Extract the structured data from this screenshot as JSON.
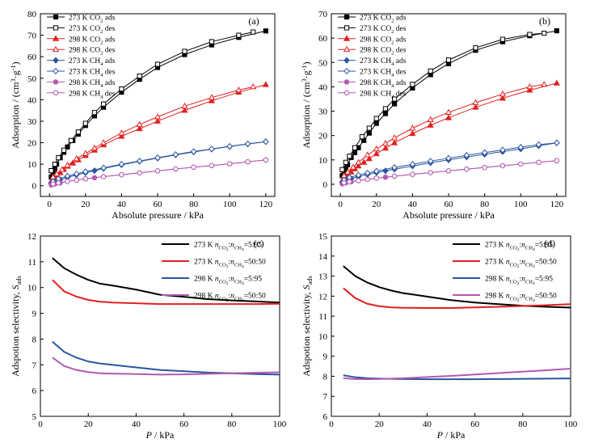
{
  "chart_data": [
    {
      "type": "scatter",
      "panel_label": "(a)",
      "xlabel": "Absolute pressure / kPa",
      "ylabel": "Adsorption / (cm³·g⁻¹)",
      "xlim": [
        -5,
        125
      ],
      "ylim": [
        -5,
        80
      ],
      "xticks": [
        0,
        20,
        40,
        60,
        80,
        100,
        120
      ],
      "yticks": [
        0,
        10,
        20,
        30,
        40,
        50,
        60,
        70,
        80
      ],
      "legend_position": "top-left",
      "series": [
        {
          "name": "273 K CO₂ ads",
          "color": "#000000",
          "marker": "square",
          "filled": true,
          "x": [
            1,
            2,
            3,
            4,
            6,
            8,
            10,
            13,
            16,
            20,
            25,
            30,
            40,
            50,
            60,
            75,
            90,
            105,
            120
          ],
          "y": [
            4,
            6,
            8,
            10,
            13,
            15.5,
            18,
            21,
            24,
            28,
            32.5,
            36.5,
            43.5,
            49.5,
            55,
            61,
            65.5,
            69,
            72
          ]
        },
        {
          "name": "273 K CO₂ des",
          "color": "#000000",
          "marker": "square",
          "filled": false,
          "x": [
            1,
            3,
            5,
            8,
            12,
            16,
            20,
            25,
            30,
            40,
            50,
            60,
            75,
            90,
            105,
            113
          ],
          "y": [
            7,
            10,
            13,
            16.5,
            21,
            25,
            29,
            34,
            38,
            45,
            51,
            56.5,
            62.5,
            67,
            70,
            71.5
          ]
        },
        {
          "name": "298 K CO₂ ads",
          "color": "#e02020",
          "marker": "triangle",
          "filled": true,
          "x": [
            1,
            2,
            4,
            6,
            8,
            10,
            13,
            16,
            20,
            25,
            30,
            40,
            50,
            60,
            75,
            90,
            105,
            120
          ],
          "y": [
            2,
            3,
            4.5,
            6,
            7.5,
            9,
            10.5,
            12,
            14,
            16.5,
            19,
            23,
            26.5,
            30,
            35,
            39.5,
            43.5,
            47
          ]
        },
        {
          "name": "298 K CO₂ des",
          "color": "#e02020",
          "marker": "triangle",
          "filled": false,
          "x": [
            2,
            4,
            7,
            10,
            15,
            20,
            25,
            30,
            40,
            50,
            60,
            75,
            90,
            105,
            113
          ],
          "y": [
            4,
            5.5,
            7.5,
            9.5,
            12.5,
            15,
            17.5,
            20,
            24.5,
            28.5,
            32,
            37,
            41,
            44.5,
            46
          ]
        },
        {
          "name": "273 K CH₄ ads",
          "color": "#2a55a0",
          "marker": "diamond",
          "filled": true,
          "x": [
            1,
            3,
            6,
            10,
            15,
            20,
            25,
            30,
            40,
            50,
            60,
            70,
            80,
            90,
            100,
            110,
            120
          ],
          "y": [
            1,
            1.8,
            2.8,
            3.8,
            5,
            6,
            7,
            8,
            9.7,
            11.3,
            12.8,
            14.3,
            15.7,
            17,
            18.2,
            19.4,
            20.5
          ]
        },
        {
          "name": "273 K CH₄ des",
          "color": "#2a55a0",
          "marker": "diamond",
          "filled": false,
          "x": [
            2,
            5,
            10,
            15,
            20,
            30,
            40,
            50,
            60,
            70,
            80,
            90,
            100,
            110,
            120
          ],
          "y": [
            2,
            3.2,
            4.5,
            5.5,
            6.5,
            8.3,
            10,
            11.5,
            13,
            14.5,
            15.9,
            17.1,
            18.3,
            19.5,
            20.5
          ]
        },
        {
          "name": "298 K CH₄ ads",
          "color": "#b15aae",
          "marker": "circle",
          "filled": true,
          "x": [
            1,
            3,
            6,
            10,
            15,
            20,
            25,
            30,
            40,
            50,
            60,
            70,
            80,
            90,
            100,
            110,
            120
          ],
          "y": [
            0.3,
            0.8,
            1.3,
            2,
            2.6,
            3.2,
            3.7,
            4.2,
            5.1,
            6,
            6.9,
            7.8,
            8.6,
            9.4,
            10.2,
            11.1,
            12
          ]
        },
        {
          "name": "298 K CH₄ des",
          "color": "#b15aae",
          "marker": "circle",
          "filled": false,
          "x": [
            2,
            5,
            10,
            15,
            20,
            30,
            40,
            50,
            60,
            70,
            80,
            90,
            100,
            110,
            120
          ],
          "y": [
            0.8,
            1.3,
            2,
            2.6,
            3.2,
            4.2,
            5.1,
            6,
            6.9,
            7.8,
            8.6,
            9.4,
            10.2,
            11.1,
            12
          ]
        }
      ]
    },
    {
      "type": "scatter",
      "panel_label": "(b)",
      "xlabel": "Absolute pressure / kPa",
      "ylabel": "Adsorption / (cm³·g⁻¹)",
      "xlim": [
        -5,
        125
      ],
      "ylim": [
        -5,
        70
      ],
      "xticks": [
        0,
        20,
        40,
        60,
        80,
        100,
        120
      ],
      "yticks": [
        0,
        10,
        20,
        30,
        40,
        50,
        60,
        70
      ],
      "legend_position": "top-left",
      "series": [
        {
          "name": "273 K CO₂ ads",
          "color": "#000000",
          "marker": "square",
          "filled": true,
          "x": [
            1,
            2,
            3,
            4,
            6,
            8,
            10,
            13,
            16,
            20,
            25,
            30,
            40,
            50,
            60,
            75,
            90,
            105,
            120
          ],
          "y": [
            3.5,
            5,
            6.5,
            8,
            11,
            13,
            15,
            18,
            21,
            25,
            29,
            33,
            39.5,
            45,
            49.5,
            55,
            58.5,
            61,
            63
          ]
        },
        {
          "name": "273 K CO₂ des",
          "color": "#000000",
          "marker": "square",
          "filled": false,
          "x": [
            1,
            3,
            5,
            8,
            12,
            16,
            20,
            25,
            30,
            40,
            50,
            60,
            75,
            90,
            105,
            113
          ],
          "y": [
            6,
            9,
            11.5,
            15,
            19.5,
            23,
            27,
            31,
            35,
            41,
            46.5,
            51,
            56,
            59.5,
            61.5,
            62
          ]
        },
        {
          "name": "298 K CO₂ ads",
          "color": "#e02020",
          "marker": "triangle",
          "filled": true,
          "x": [
            1,
            2,
            4,
            6,
            8,
            10,
            13,
            16,
            20,
            25,
            30,
            40,
            50,
            60,
            75,
            90,
            105,
            120
          ],
          "y": [
            1.5,
            2.5,
            3.8,
            5,
            6.3,
            7.5,
            9,
            10.5,
            12.5,
            14.8,
            17,
            20.8,
            24.2,
            27.3,
            31.6,
            35.3,
            38.6,
            41.5
          ]
        },
        {
          "name": "298 K CO₂ des",
          "color": "#e02020",
          "marker": "triangle",
          "filled": false,
          "x": [
            2,
            4,
            7,
            10,
            15,
            20,
            25,
            30,
            40,
            50,
            60,
            75,
            90,
            105,
            113
          ],
          "y": [
            3.5,
            5,
            7,
            9,
            12,
            14.5,
            16.8,
            19,
            23,
            26.5,
            29.5,
            33.5,
            37,
            40,
            41
          ]
        },
        {
          "name": "273 K CH₄ ads",
          "color": "#2a55a0",
          "marker": "diamond",
          "filled": true,
          "x": [
            1,
            3,
            6,
            10,
            15,
            20,
            25,
            30,
            40,
            50,
            60,
            70,
            80,
            90,
            100,
            110,
            120
          ],
          "y": [
            0.8,
            1.5,
            2.3,
            3.1,
            4,
            4.8,
            5.5,
            6.2,
            7.5,
            8.8,
            10,
            11.2,
            12.3,
            13.4,
            14.5,
            15.8,
            17
          ]
        },
        {
          "name": "273 K CH₄ des",
          "color": "#2a55a0",
          "marker": "diamond",
          "filled": false,
          "x": [
            2,
            5,
            10,
            15,
            20,
            30,
            40,
            50,
            60,
            70,
            80,
            90,
            100,
            110,
            120
          ],
          "y": [
            1.8,
            2.8,
            3.8,
            4.6,
            5.4,
            6.9,
            8.2,
            9.5,
            10.7,
            11.9,
            13,
            14.1,
            15.2,
            16.3,
            17
          ]
        },
        {
          "name": "298 K CH₄ ads",
          "color": "#b15aae",
          "marker": "circle",
          "filled": true,
          "x": [
            1,
            3,
            6,
            10,
            15,
            20,
            25,
            30,
            40,
            50,
            60,
            70,
            80,
            90,
            100,
            110,
            120
          ],
          "y": [
            0.2,
            0.6,
            1,
            1.5,
            2,
            2.5,
            2.9,
            3.3,
            4.1,
            4.8,
            5.5,
            6.2,
            6.9,
            7.6,
            8.3,
            9,
            9.7
          ]
        },
        {
          "name": "298 K CH₄ des",
          "color": "#b15aae",
          "marker": "circle",
          "filled": false,
          "x": [
            2,
            5,
            10,
            15,
            20,
            30,
            40,
            50,
            60,
            70,
            80,
            90,
            100,
            110,
            120
          ],
          "y": [
            0.6,
            1,
            1.5,
            2,
            2.5,
            3.3,
            4.1,
            4.8,
            5.5,
            6.2,
            6.9,
            7.6,
            8.3,
            9,
            9.7
          ]
        }
      ]
    },
    {
      "type": "line",
      "panel_label": "(c)",
      "xlabel_italic": "P",
      "xlabel_rest": " / kPa",
      "ylabel_text": "Adspotion selectivity, ",
      "ylabel_sym": "S",
      "ylabel_sub": "ads",
      "xlim": [
        0,
        100
      ],
      "ylim": [
        5,
        12
      ],
      "xticks": [
        0,
        20,
        40,
        60,
        80,
        100
      ],
      "yticks": [
        5,
        6,
        7,
        8,
        9,
        10,
        11,
        12
      ],
      "legend_position": "top-right",
      "series": [
        {
          "temp": "273 K",
          "ratio": "=5:95",
          "color": "#000000",
          "x": [
            5,
            10,
            15,
            20,
            25,
            30,
            40,
            50,
            60,
            70,
            80,
            90,
            100
          ],
          "y": [
            11.15,
            10.75,
            10.5,
            10.3,
            10.15,
            10.08,
            9.92,
            9.72,
            9.64,
            9.55,
            9.5,
            9.46,
            9.42
          ]
        },
        {
          "temp": "273 K",
          "ratio": "=50:50",
          "color": "#e02020",
          "x": [
            5,
            10,
            15,
            20,
            25,
            30,
            40,
            50,
            60,
            70,
            80,
            90,
            100
          ],
          "y": [
            10.3,
            9.85,
            9.65,
            9.52,
            9.45,
            9.42,
            9.39,
            9.36,
            9.36,
            9.36,
            9.36,
            9.36,
            9.37
          ]
        },
        {
          "temp": "298 K",
          "ratio": "=5:95",
          "color": "#2a55a0",
          "x": [
            5,
            10,
            15,
            20,
            25,
            30,
            40,
            50,
            60,
            70,
            80,
            90,
            100
          ],
          "y": [
            7.9,
            7.5,
            7.28,
            7.13,
            7.05,
            7.0,
            6.9,
            6.8,
            6.75,
            6.7,
            6.67,
            6.64,
            6.62
          ]
        },
        {
          "temp": "298 K",
          "ratio": "=50:50",
          "color": "#b15aae",
          "x": [
            5,
            10,
            15,
            20,
            25,
            30,
            40,
            50,
            60,
            70,
            80,
            90,
            100
          ],
          "y": [
            7.28,
            6.95,
            6.8,
            6.72,
            6.67,
            6.66,
            6.64,
            6.62,
            6.63,
            6.65,
            6.67,
            6.69,
            6.71
          ]
        }
      ]
    },
    {
      "type": "line",
      "panel_label": "(d)",
      "xlabel_italic": "P",
      "xlabel_rest": " / kPa",
      "ylabel_text": "Adspotion selectivity, ",
      "ylabel_sym": "S",
      "ylabel_sub": "ads",
      "xlim": [
        0,
        100
      ],
      "ylim": [
        6,
        15
      ],
      "xticks": [
        0,
        20,
        40,
        60,
        80,
        100
      ],
      "yticks": [
        6,
        7,
        8,
        9,
        10,
        11,
        12,
        13,
        14,
        15
      ],
      "legend_position": "top-right",
      "series": [
        {
          "temp": "273 K",
          "ratio": "=5:95",
          "color": "#000000",
          "x": [
            5,
            10,
            15,
            20,
            25,
            30,
            40,
            50,
            60,
            70,
            80,
            90,
            100
          ],
          "y": [
            13.5,
            13.0,
            12.68,
            12.45,
            12.28,
            12.15,
            11.98,
            11.8,
            11.68,
            11.6,
            11.52,
            11.47,
            11.43
          ]
        },
        {
          "temp": "273 K",
          "ratio": "=50:50",
          "color": "#e02020",
          "x": [
            5,
            10,
            15,
            20,
            25,
            30,
            40,
            50,
            60,
            70,
            80,
            90,
            100
          ],
          "y": [
            12.4,
            11.9,
            11.62,
            11.5,
            11.44,
            11.42,
            11.41,
            11.41,
            11.44,
            11.47,
            11.51,
            11.55,
            11.6
          ]
        },
        {
          "temp": "298 K",
          "ratio": "=5:95",
          "color": "#2a55a0",
          "x": [
            5,
            10,
            15,
            20,
            25,
            30,
            40,
            50,
            60,
            70,
            80,
            90,
            100
          ],
          "y": [
            8.05,
            7.95,
            7.9,
            7.88,
            7.87,
            7.86,
            7.85,
            7.85,
            7.85,
            7.86,
            7.87,
            7.88,
            7.89
          ]
        },
        {
          "temp": "298 K",
          "ratio": "=50:50",
          "color": "#b15aae",
          "x": [
            5,
            10,
            15,
            20,
            25,
            30,
            40,
            50,
            60,
            70,
            80,
            90,
            100
          ],
          "y": [
            7.9,
            7.86,
            7.85,
            7.86,
            7.88,
            7.9,
            7.96,
            8.02,
            8.09,
            8.16,
            8.23,
            8.3,
            8.38
          ]
        }
      ]
    }
  ]
}
